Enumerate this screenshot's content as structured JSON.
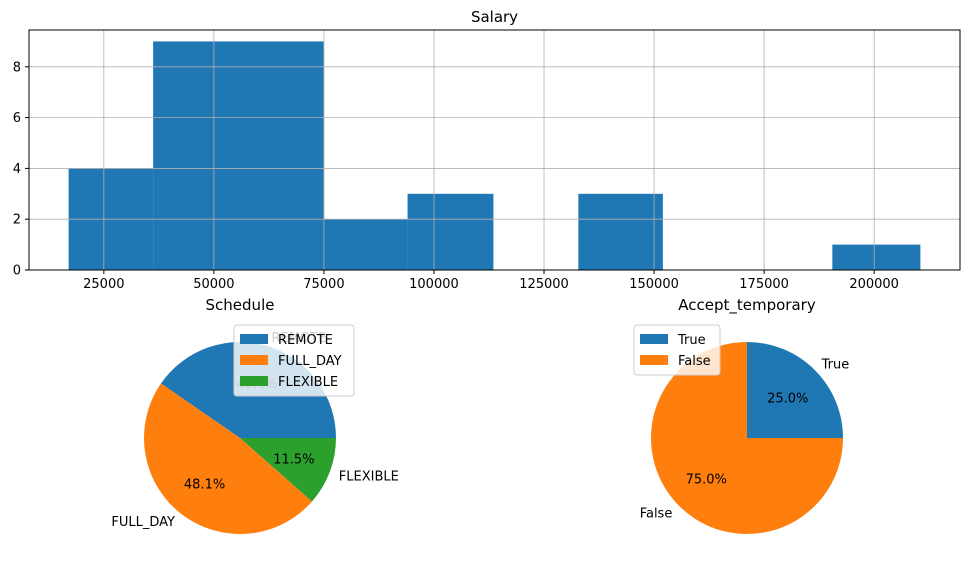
{
  "chart_data": [
    {
      "type": "bar",
      "title": "Salary",
      "xlabel": "",
      "ylabel": "",
      "xlim": [
        8000,
        219500
      ],
      "ylim": [
        0,
        9.45
      ],
      "grid": true,
      "bar_color": "#1f77b4",
      "bins": [
        {
          "x0": 17000,
          "x1": 36200,
          "count": 4
        },
        {
          "x0": 36200,
          "x1": 75000,
          "count": 9
        },
        {
          "x0": 75000,
          "x1": 94000,
          "count": 2
        },
        {
          "x0": 94000,
          "x1": 113500,
          "count": 3
        },
        {
          "x0": 132800,
          "x1": 152000,
          "count": 3
        },
        {
          "x0": 190500,
          "x1": 210500,
          "count": 1
        }
      ],
      "xticks": [
        {
          "value": 25000,
          "label": "25000"
        },
        {
          "value": 50000,
          "label": "50000"
        },
        {
          "value": 75000,
          "label": "75000"
        },
        {
          "value": 100000,
          "label": "100000"
        },
        {
          "value": 125000,
          "label": "125000"
        },
        {
          "value": 150000,
          "label": "150000"
        },
        {
          "value": 175000,
          "label": "175000"
        },
        {
          "value": 200000,
          "label": "200000"
        }
      ],
      "yticks": [
        {
          "value": 0,
          "label": "0"
        },
        {
          "value": 2,
          "label": "2"
        },
        {
          "value": 4,
          "label": "4"
        },
        {
          "value": 6,
          "label": "6"
        },
        {
          "value": 8,
          "label": "8"
        }
      ]
    },
    {
      "type": "pie",
      "title": "Schedule",
      "legend_placement": "top-right",
      "start_angle": 0,
      "slices": [
        {
          "label": "REMOTE",
          "percent": 40.4,
          "pct_label": "40.4%",
          "color": "#1f77b4"
        },
        {
          "label": "FULL_DAY",
          "percent": 48.1,
          "pct_label": "48.1%",
          "color": "#ff7f0e"
        },
        {
          "label": "FLEXIBLE",
          "percent": 11.5,
          "pct_label": "11.5%",
          "color": "#2ca02c"
        }
      ]
    },
    {
      "type": "pie",
      "title": "Accept_temporary",
      "legend_placement": "top-left",
      "start_angle": 0,
      "slices": [
        {
          "label": "True",
          "percent": 25.0,
          "pct_label": "25.0%",
          "color": "#1f77b4"
        },
        {
          "label": "False",
          "percent": 75.0,
          "pct_label": "75.0%",
          "color": "#ff7f0e"
        }
      ]
    }
  ]
}
